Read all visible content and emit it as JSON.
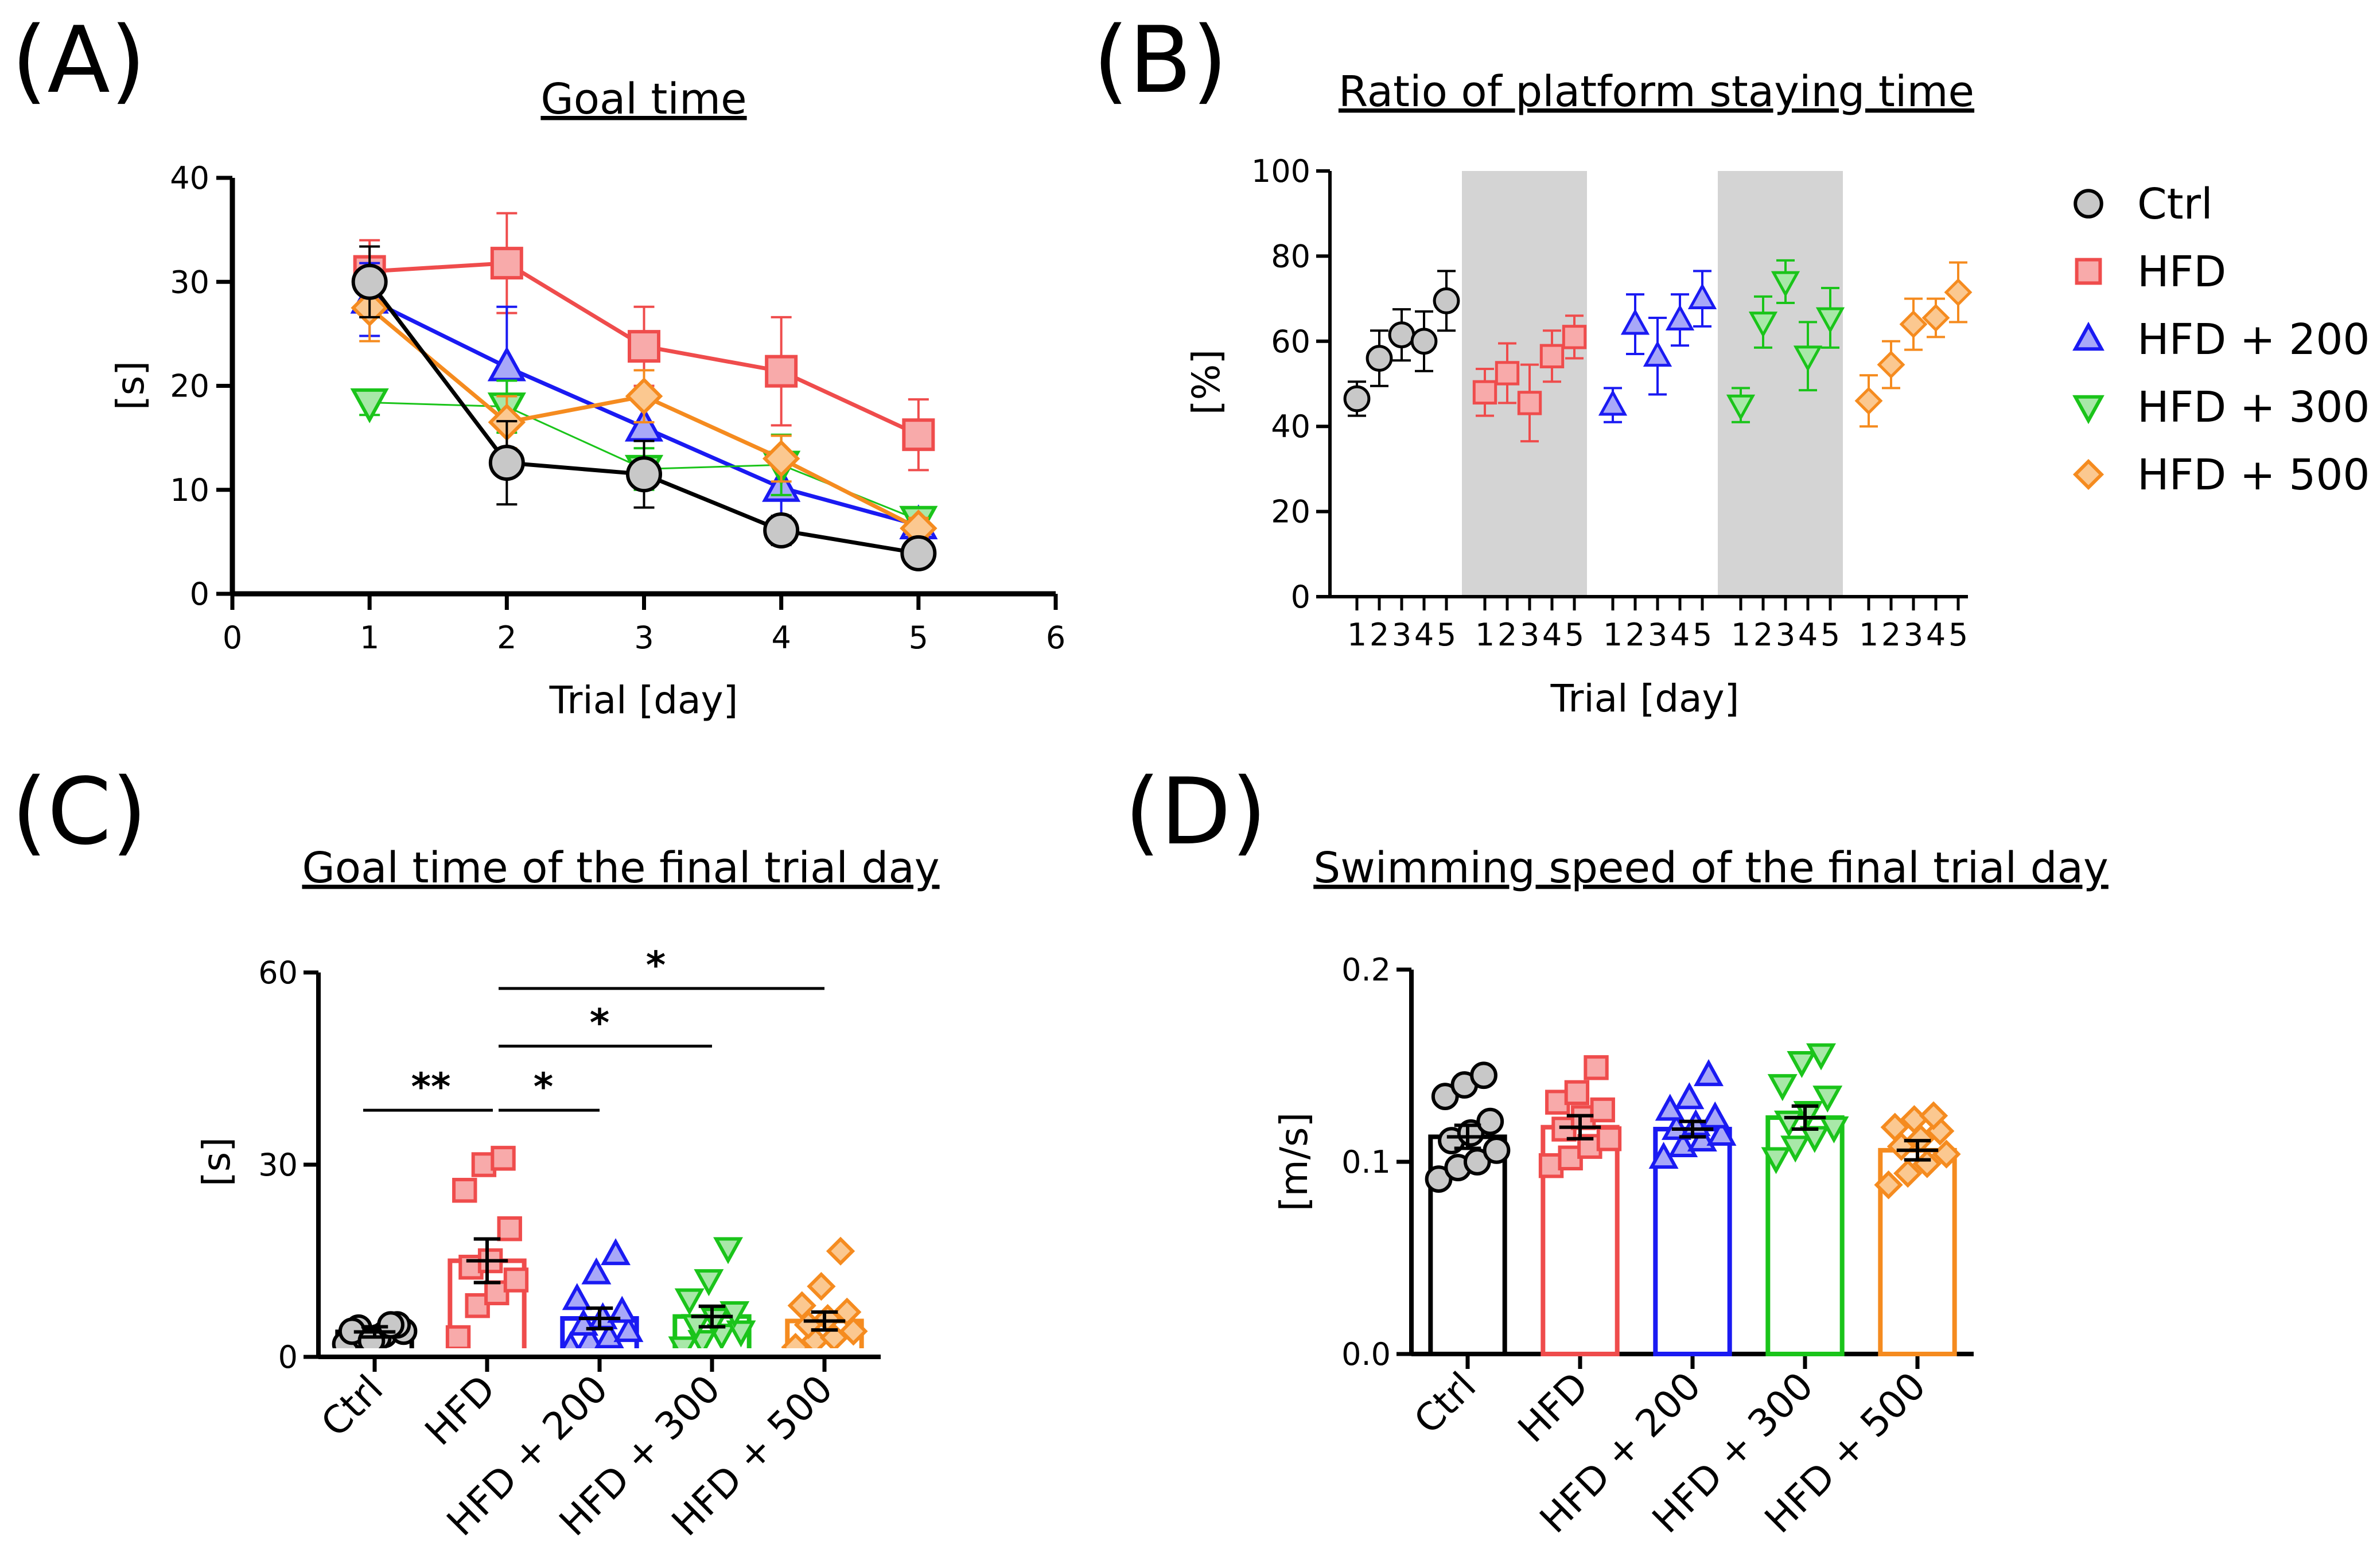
{
  "colors": {
    "Ctrl": "#000000",
    "HFD": "#ef4c4c",
    "HFD + 200": "#1a1af2",
    "HFD + 300": "#1ac41a",
    "HFD + 500": "#f58b1f",
    "Ctrl_fill": "#c8c8c8",
    "HFD_fill": "#f8aaaa",
    "HFD + 200_fill": "#a8a8f8",
    "HFD + 300_fill": "#a8e8a8",
    "HFD + 500_fill": "#fbc890",
    "shade": "#d4d4d4"
  },
  "chart_data": [
    {
      "id": "A",
      "panel_label": "(A)",
      "type": "line",
      "title": "Goal time",
      "xlabel": "Trial [day]",
      "ylabel": "[s]",
      "xlim": [
        0,
        6
      ],
      "ylim": [
        0,
        40
      ],
      "xticks": [
        0,
        1,
        2,
        3,
        4,
        5,
        6
      ],
      "yticks": [
        0,
        10,
        20,
        30,
        40
      ],
      "x": [
        1,
        2,
        3,
        4,
        5
      ],
      "series": [
        {
          "name": "HFD",
          "marker": "square",
          "values": [
            31.0,
            31.8,
            23.8,
            21.4,
            15.3
          ],
          "errors": [
            3.0,
            4.8,
            3.8,
            5.2,
            3.4
          ]
        },
        {
          "name": "HFD + 200",
          "marker": "triangle-up",
          "values": [
            28.3,
            21.8,
            16.0,
            10.2,
            6.6
          ],
          "errors": [
            3.5,
            5.8,
            2.8,
            3.0,
            1.4
          ]
        },
        {
          "name": "HFD + 300",
          "marker": "triangle-down",
          "values": [
            18.4,
            18.0,
            12.0,
            12.4,
            7.1
          ],
          "errors": [
            1.2,
            2.5,
            2.0,
            2.9,
            1.1
          ]
        },
        {
          "name": "HFD + 500",
          "marker": "diamond",
          "values": [
            27.5,
            16.5,
            19.0,
            13.0,
            6.3
          ],
          "errors": [
            3.2,
            2.5,
            2.5,
            2.2,
            1.0
          ]
        },
        {
          "name": "Ctrl",
          "marker": "circle",
          "values": [
            30.0,
            12.6,
            11.5,
            6.1,
            3.9
          ],
          "errors": [
            3.4,
            4.0,
            3.2,
            1.4,
            0.6
          ]
        }
      ]
    },
    {
      "id": "B",
      "panel_label": "(B)",
      "type": "scatter",
      "title": "Ratio of platform staying time",
      "xlabel": "Trial [day]",
      "ylabel": "[%]",
      "ylim": [
        0,
        100
      ],
      "yticks": [
        0,
        20,
        40,
        60,
        80,
        100
      ],
      "day_labels": [
        "1",
        "2",
        "3",
        "4",
        "5"
      ],
      "shaded_groups": [
        "HFD",
        "HFD + 300"
      ],
      "groups": [
        {
          "name": "Ctrl",
          "marker": "circle",
          "values": [
            46.5,
            56.0,
            61.5,
            60.0,
            69.5
          ],
          "errors": [
            4.0,
            6.5,
            6.0,
            7.0,
            7.0
          ]
        },
        {
          "name": "HFD",
          "marker": "square",
          "values": [
            48.0,
            52.5,
            45.5,
            56.5,
            61.0
          ],
          "errors": [
            5.5,
            7.0,
            9.0,
            6.0,
            5.0
          ]
        },
        {
          "name": "HFD + 200",
          "marker": "triangle-up",
          "values": [
            45.0,
            64.0,
            56.5,
            65.0,
            70.0
          ],
          "errors": [
            4.0,
            7.0,
            9.0,
            6.0,
            6.5
          ]
        },
        {
          "name": "HFD + 300",
          "marker": "triangle-down",
          "values": [
            45.0,
            64.5,
            74.0,
            56.5,
            65.5
          ],
          "errors": [
            4.0,
            6.0,
            5.0,
            8.0,
            7.0
          ]
        },
        {
          "name": "HFD + 500",
          "marker": "diamond",
          "values": [
            46.0,
            54.5,
            64.0,
            65.5,
            71.5
          ],
          "errors": [
            6.0,
            5.5,
            6.0,
            4.5,
            7.0
          ]
        }
      ],
      "legend": [
        "Ctrl",
        "HFD",
        "HFD + 200",
        "HFD + 300",
        "HFD + 500"
      ]
    },
    {
      "id": "C",
      "panel_label": "(C)",
      "type": "bar",
      "title": "Goal time of the final trial day",
      "ylabel": "[s]",
      "ylim": [
        0,
        60
      ],
      "yticks": [
        0,
        30,
        60
      ],
      "categories": [
        "Ctrl",
        "HFD",
        "HFD + 200",
        "HFD + 300",
        "HFD + 500"
      ],
      "markers": [
        "circle",
        "square",
        "triangle-up",
        "triangle-down",
        "diamond"
      ],
      "means": [
        3.9,
        15.0,
        6.0,
        6.3,
        5.6
      ],
      "errors": [
        0.8,
        3.4,
        1.6,
        1.6,
        1.4
      ],
      "points": [
        [
          2.0,
          3.0,
          3.5,
          4.0,
          4.5,
          3.0,
          5.0,
          4.0,
          2.5,
          5.0
        ],
        [
          3.0,
          8.0,
          10.0,
          12.0,
          14.0,
          15.0,
          20.0,
          26.0,
          30.0,
          31.0
        ],
        [
          1.5,
          2.5,
          3.0,
          4.0,
          5.0,
          6.0,
          7.0,
          9.0,
          13.0,
          16.0
        ],
        [
          1.5,
          2.5,
          3.5,
          4.0,
          5.0,
          6.0,
          7.0,
          9.0,
          12.0,
          17.0
        ],
        [
          1.5,
          2.5,
          3.0,
          4.0,
          5.0,
          6.0,
          7.0,
          8.0,
          11.0,
          16.5
        ]
      ],
      "significance": [
        {
          "from": "Ctrl",
          "to": "HFD",
          "label": "**",
          "y": 38.5
        },
        {
          "from": "HFD",
          "to": "HFD + 200",
          "label": "*",
          "y": 38.5
        },
        {
          "from": "HFD",
          "to": "HFD + 300",
          "label": "*",
          "y": 48.5
        },
        {
          "from": "HFD",
          "to": "HFD + 500",
          "label": "*",
          "y": 57.5
        }
      ]
    },
    {
      "id": "D",
      "panel_label": "(D)",
      "type": "bar",
      "title": "Swimming speed of the final trial day",
      "ylabel": "[m/s]",
      "ylim": [
        0.0,
        0.2
      ],
      "yticks": [
        0.0,
        0.1,
        0.2
      ],
      "categories": [
        "Ctrl",
        "HFD",
        "HFD + 200",
        "HFD + 300",
        "HFD + 500"
      ],
      "markers": [
        "circle",
        "square",
        "triangle-up",
        "triangle-down",
        "diamond"
      ],
      "means": [
        0.113,
        0.118,
        0.117,
        0.123,
        0.106
      ],
      "errors": [
        0.006,
        0.006,
        0.004,
        0.006,
        0.005
      ],
      "points": [
        [
          0.091,
          0.097,
          0.1,
          0.106,
          0.111,
          0.115,
          0.121,
          0.134,
          0.14,
          0.145
        ],
        [
          0.098,
          0.102,
          0.108,
          0.112,
          0.117,
          0.123,
          0.127,
          0.131,
          0.136,
          0.149
        ],
        [
          0.102,
          0.108,
          0.111,
          0.114,
          0.117,
          0.119,
          0.123,
          0.127,
          0.133,
          0.145
        ],
        [
          0.102,
          0.108,
          0.113,
          0.118,
          0.121,
          0.126,
          0.134,
          0.14,
          0.152,
          0.156
        ],
        [
          0.088,
          0.094,
          0.099,
          0.104,
          0.108,
          0.112,
          0.116,
          0.118,
          0.122,
          0.124
        ]
      ]
    }
  ]
}
